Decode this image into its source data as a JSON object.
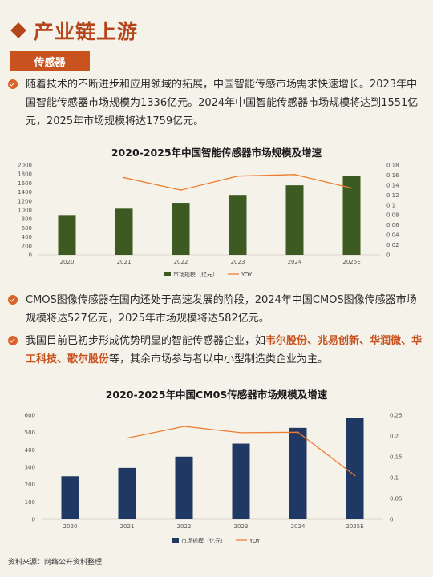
{
  "header": {
    "title": "产业链上游"
  },
  "section": {
    "tag": "传感器"
  },
  "paragraphs": {
    "p1": "随着技术的不断进步和应用领域的拓展，中国智能传感市场需求快速增长。2023年中国智能传感器市场规模为1336亿元。2024年中国智能传感器市场规模将达到1551亿元，2025年市场规模将达1759亿元。",
    "p2": "CMOS图像传感器在国内还处于高速发展的阶段，2024年中国CMOS图像传感器市场规模将达527亿元，2025年市场规模将达582亿元。",
    "p3_pre": "我国目前已初步形成优势明显的智能传感器企业，如",
    "p3_c1": "韦尔股份",
    "p3_sep1": "、",
    "p3_c2": "兆易创新",
    "p3_sep2": "、",
    "p3_c3": "华润微",
    "p3_sep3": "、",
    "p3_c4": "华工科技",
    "p3_sep4": "、",
    "p3_c5": "歌尔股份",
    "p3_post": "等，其余市场参与者以中小型制造类企业为主。"
  },
  "colors": {
    "bar1": "#3d5a23",
    "bar2": "#1f3864",
    "line": "#ed7d31",
    "accent": "#c8531f"
  },
  "chart_data": [
    {
      "type": "bar",
      "title": "2020-2025年中国智能传感器市场规模及增速",
      "categories": [
        "2020",
        "2021",
        "2022",
        "2023",
        "2024",
        "2025E"
      ],
      "series": [
        {
          "name": "市场规模（亿元）",
          "type": "bar",
          "axis": "left",
          "values": [
            887,
            1030,
            1160,
            1336,
            1551,
            1759
          ]
        },
        {
          "name": "YOY",
          "type": "line",
          "axis": "right",
          "values": [
            null,
            0.155,
            0.13,
            0.158,
            0.161,
            0.134
          ]
        }
      ],
      "y_left": {
        "range": [
          0,
          2000
        ],
        "ticks": [
          0,
          200,
          400,
          600,
          800,
          1000,
          1200,
          1400,
          1600,
          1800,
          2000
        ]
      },
      "y_right": {
        "range": [
          0,
          0.18
        ],
        "ticks": [
          0,
          0.02,
          0.04,
          0.06,
          0.08,
          0.1,
          0.12,
          0.14,
          0.16,
          0.18
        ]
      },
      "legend": "bottom"
    },
    {
      "type": "bar",
      "title": "2020-2025年中国CM0S传感器市场规模及增速",
      "categories": [
        "2020",
        "2021",
        "2022",
        "2023",
        "2024",
        "2025E"
      ],
      "series": [
        {
          "name": "市场规模（亿元）",
          "type": "bar",
          "axis": "left",
          "values": [
            248,
            296,
            361,
            436,
            527,
            582
          ]
        },
        {
          "name": "YOY",
          "type": "line",
          "axis": "right",
          "values": [
            null,
            0.195,
            0.223,
            0.208,
            0.209,
            0.105
          ]
        }
      ],
      "y_left": {
        "range": [
          0,
          600
        ],
        "ticks": [
          0,
          100,
          200,
          300,
          400,
          500,
          600
        ]
      },
      "y_right": {
        "range": [
          0,
          0.25
        ],
        "ticks": [
          0,
          0.05,
          0.1,
          0.15,
          0.2,
          0.25
        ]
      },
      "legend": "bottom"
    }
  ],
  "footer": {
    "source": "资料来源：网络公开资料整理"
  }
}
